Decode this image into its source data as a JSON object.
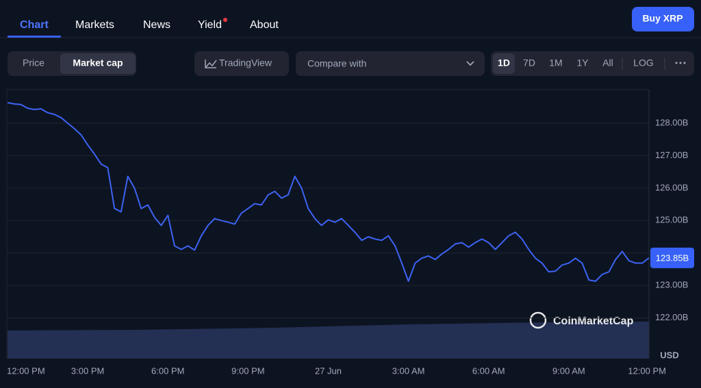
{
  "nav": {
    "tabs": [
      "Chart",
      "Markets",
      "News",
      "Yield",
      "About"
    ],
    "active": 0,
    "button": "Buy XRP"
  },
  "toolbar": {
    "toggle": [
      "Price",
      "Market cap"
    ],
    "toggle_active": 1,
    "tradingview": "TradingView",
    "compare": "Compare with",
    "ranges": [
      "1D",
      "7D",
      "1M",
      "1Y",
      "All",
      "LOG"
    ],
    "range_active": 0
  },
  "chart_data": {
    "type": "line",
    "color": "#3d63f5",
    "grid": true,
    "unit": "USD",
    "watermark": "CoinMarketCap",
    "categories": [
      "12:00 PM",
      null,
      null,
      null,
      null,
      null,
      null,
      null,
      null,
      null,
      null,
      null,
      "3:00 PM",
      null,
      null,
      null,
      null,
      null,
      null,
      null,
      null,
      null,
      null,
      null,
      "6:00 PM",
      null,
      null,
      null,
      null,
      null,
      null,
      null,
      null,
      null,
      null,
      null,
      "9:00 PM",
      null,
      null,
      null,
      null,
      null,
      null,
      null,
      null,
      null,
      null,
      null,
      "27 Jun",
      null,
      null,
      null,
      null,
      null,
      null,
      null,
      null,
      null,
      null,
      null,
      "3:00 AM",
      null,
      null,
      null,
      null,
      null,
      null,
      null,
      null,
      null,
      null,
      null,
      "6:00 AM",
      null,
      null,
      null,
      null,
      null,
      null,
      null,
      null,
      null,
      null,
      null,
      "9:00 AM",
      null,
      null,
      null,
      null,
      null,
      null,
      null,
      null,
      null,
      null,
      null,
      "12:00 PM"
    ],
    "values": [
      128.63,
      128.59,
      128.57,
      128.46,
      128.42,
      128.44,
      128.32,
      128.27,
      128.17,
      128.0,
      127.83,
      127.64,
      127.33,
      127.05,
      126.74,
      126.63,
      125.37,
      125.27,
      126.36,
      126.0,
      125.37,
      125.48,
      125.1,
      124.85,
      125.16,
      124.22,
      124.11,
      124.22,
      124.09,
      124.53,
      124.85,
      125.06,
      125.0,
      124.95,
      124.89,
      125.23,
      125.37,
      125.52,
      125.48,
      125.79,
      125.9,
      125.69,
      125.79,
      126.36,
      126.0,
      125.37,
      125.06,
      124.85,
      125.02,
      124.95,
      125.06,
      124.85,
      124.64,
      124.39,
      124.5,
      124.43,
      124.39,
      124.53,
      124.22,
      123.69,
      123.13,
      123.69,
      123.84,
      123.91,
      123.8,
      123.97,
      124.11,
      124.28,
      124.32,
      124.18,
      124.32,
      124.43,
      124.32,
      124.11,
      124.32,
      124.53,
      124.64,
      124.43,
      124.11,
      123.84,
      123.69,
      123.42,
      123.44,
      123.63,
      123.69,
      123.84,
      123.69,
      123.17,
      123.13,
      123.34,
      123.42,
      123.8,
      124.05,
      123.76,
      123.69,
      123.69,
      123.85
    ],
    "price_tag": {
      "value": 123.85,
      "label": "123.85B"
    },
    "ylim": [
      120.75,
      129.03
    ],
    "yticks": [
      {
        "value": 122,
        "label": "122.00B"
      },
      {
        "value": 123,
        "label": "123.00B"
      },
      {
        "value": 124,
        "label": "124.00B"
      },
      {
        "value": 125,
        "label": "125.00B"
      },
      {
        "value": 126,
        "label": "126.00B"
      },
      {
        "value": 127,
        "label": "127.00B"
      },
      {
        "value": 128,
        "label": "128.00B"
      }
    ]
  }
}
